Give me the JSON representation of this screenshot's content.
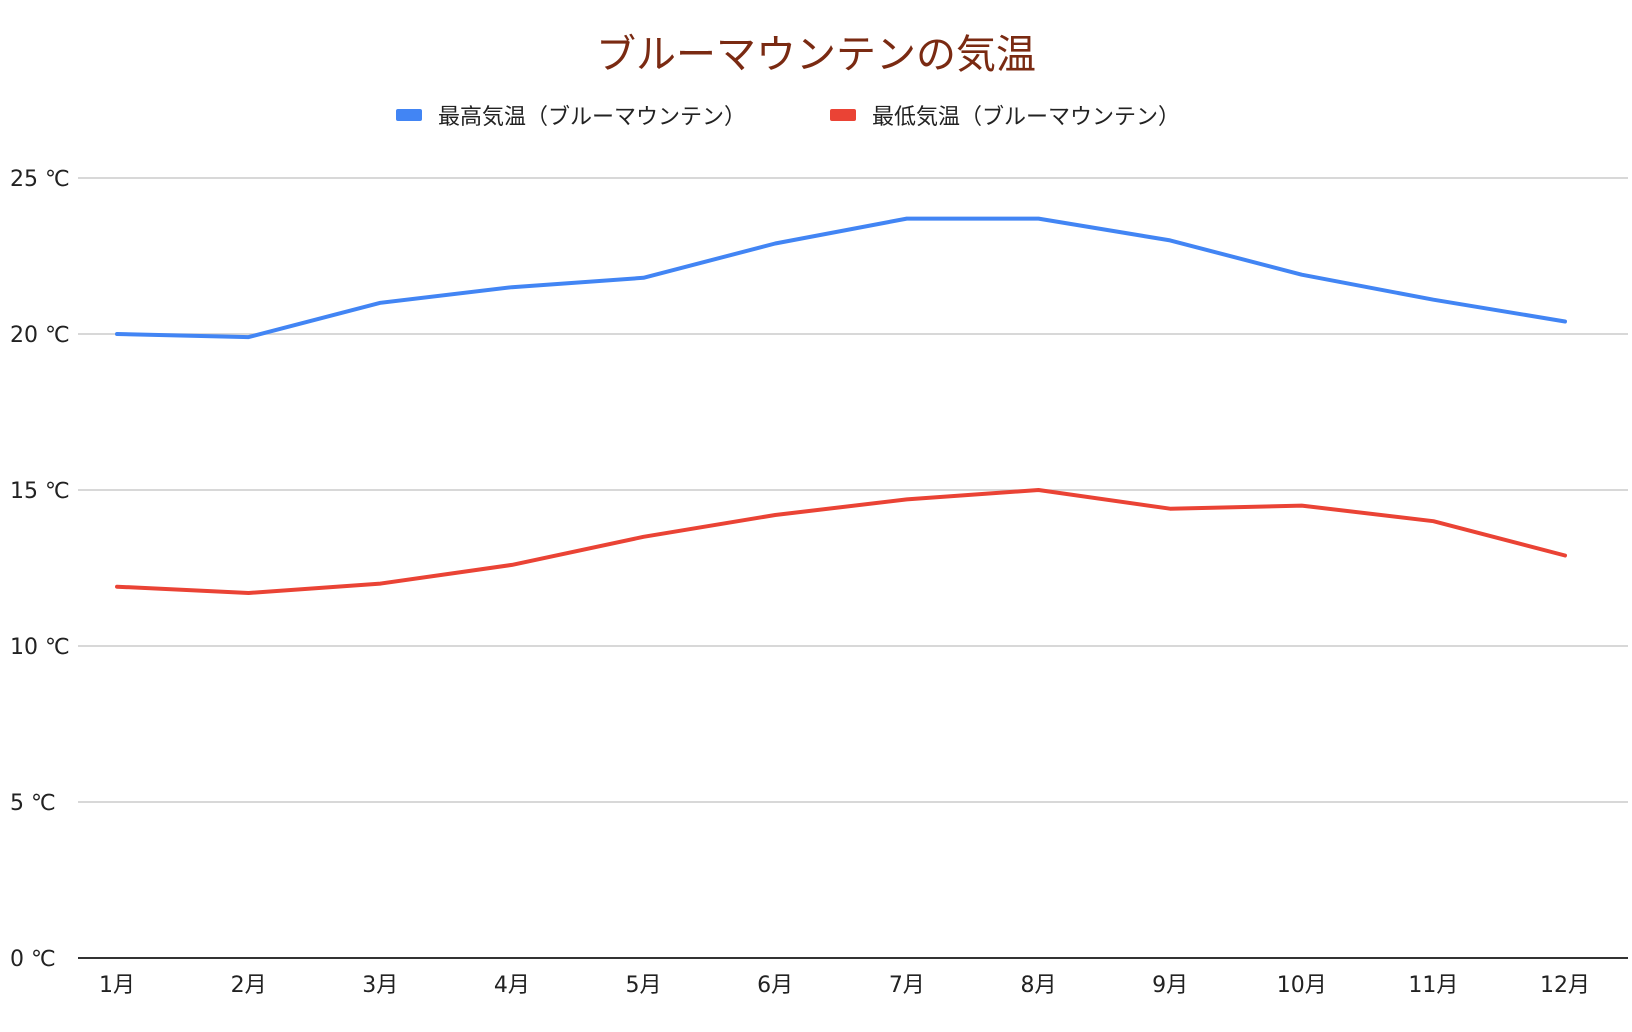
{
  "chart_data": {
    "type": "line",
    "title": "ブルーマウンテンの気温",
    "xlabel": "",
    "ylabel": "",
    "categories": [
      "1月",
      "2月",
      "3月",
      "4月",
      "5月",
      "6月",
      "7月",
      "8月",
      "9月",
      "10月",
      "11月",
      "12月"
    ],
    "yticks": [
      "0 ℃",
      "5 ℃",
      "10 ℃",
      "15 ℃",
      "20 ℃",
      "25 ℃"
    ],
    "ylim": [
      0,
      25
    ],
    "grid": true,
    "legend_position": "top",
    "series": [
      {
        "name": "最高気温（ブルーマウンテン）",
        "color": "#4285f4",
        "values": [
          20.0,
          19.9,
          21.0,
          21.5,
          21.8,
          22.9,
          23.7,
          23.7,
          23.0,
          21.9,
          21.1,
          20.4
        ]
      },
      {
        "name": "最低気温（ブルーマウンテン）",
        "color": "#ea4335",
        "values": [
          11.9,
          11.7,
          12.0,
          12.6,
          13.5,
          14.2,
          14.7,
          15.0,
          14.4,
          14.5,
          14.0,
          12.9
        ]
      }
    ]
  }
}
